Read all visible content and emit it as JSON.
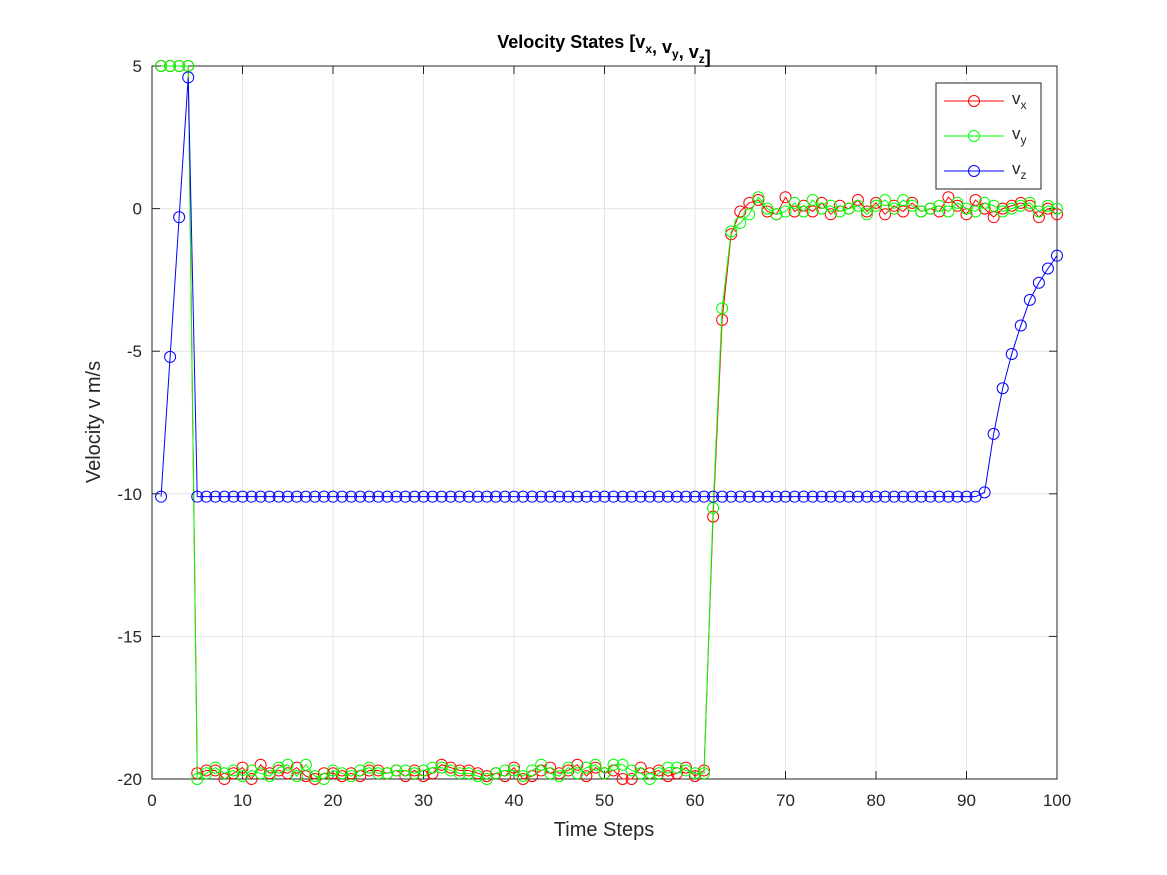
{
  "chart_data": {
    "type": "line",
    "title": "Velocity States [vx, vy, vz]",
    "x_label": "Time Steps",
    "y_label": "Velocity v m/s",
    "x": [
      1,
      2,
      3,
      4,
      5,
      6,
      7,
      8,
      9,
      10,
      11,
      12,
      13,
      14,
      15,
      16,
      17,
      18,
      19,
      20,
      21,
      22,
      23,
      24,
      25,
      26,
      27,
      28,
      29,
      30,
      31,
      32,
      33,
      34,
      35,
      36,
      37,
      38,
      39,
      40,
      41,
      42,
      43,
      44,
      45,
      46,
      47,
      48,
      49,
      50,
      51,
      52,
      53,
      54,
      55,
      56,
      57,
      58,
      59,
      60,
      61,
      62,
      63,
      64,
      65,
      66,
      67,
      68,
      69,
      70,
      71,
      72,
      73,
      74,
      75,
      76,
      77,
      78,
      79,
      80,
      81,
      82,
      83,
      84,
      85,
      86,
      87,
      88,
      89,
      90,
      91,
      92,
      93,
      94,
      95,
      96,
      97,
      98,
      99,
      100
    ],
    "series": [
      {
        "name": "vx",
        "color": "#ff0000",
        "values": [
          5,
          5,
          5,
          5,
          -19.8,
          -19.7,
          -19.7,
          -20,
          -19.8,
          -19.6,
          -20,
          -19.5,
          -19.8,
          -19.7,
          -19.8,
          -19.6,
          -19.9,
          -20,
          -19.8,
          -19.8,
          -19.9,
          -19.8,
          -19.9,
          -19.7,
          -19.7,
          -19.8,
          -19.7,
          -19.9,
          -19.7,
          -19.9,
          -19.8,
          -19.5,
          -19.6,
          -19.7,
          -19.7,
          -19.8,
          -19.9,
          -19.8,
          -19.9,
          -19.6,
          -20,
          -19.9,
          -19.7,
          -19.6,
          -19.8,
          -19.7,
          -19.5,
          -19.9,
          -19.6,
          -19.8,
          -19.7,
          -20,
          -20,
          -19.6,
          -19.8,
          -19.7,
          -19.9,
          -19.8,
          -19.6,
          -19.9,
          -19.7,
          -10.8,
          -3.9,
          -0.9,
          -0.1,
          0.2,
          0.3,
          -0.1,
          -0.2,
          0.4,
          -0.1,
          0.1,
          -0.1,
          0.2,
          -0.2,
          0.1,
          0,
          0.3,
          -0.1,
          0.2,
          -0.2,
          0.1,
          -0.1,
          0.2,
          -0.1,
          0,
          -0.1,
          0.4,
          0.1,
          -0.2,
          0.3,
          0,
          -0.3,
          0,
          0.1,
          0.2,
          0.1,
          -0.3,
          0,
          -0.2
        ]
      },
      {
        "name": "vy",
        "color": "#00ff00",
        "values": [
          5,
          5,
          5,
          5,
          -20,
          -19.8,
          -19.6,
          -19.8,
          -19.7,
          -19.9,
          -19.7,
          -19.8,
          -19.9,
          -19.6,
          -19.5,
          -19.9,
          -19.5,
          -19.9,
          -20,
          -19.7,
          -19.8,
          -19.9,
          -19.7,
          -19.6,
          -19.8,
          -19.8,
          -19.7,
          -19.7,
          -19.8,
          -19.7,
          -19.6,
          -19.6,
          -19.7,
          -19.8,
          -19.8,
          -19.9,
          -20,
          -19.8,
          -19.7,
          -19.7,
          -19.9,
          -19.7,
          -19.5,
          -19.8,
          -19.9,
          -19.6,
          -19.8,
          -19.6,
          -19.5,
          -19.8,
          -19.5,
          -19.5,
          -19.7,
          -19.8,
          -20,
          -19.8,
          -19.6,
          -19.6,
          -19.7,
          -19.8,
          -19.8,
          -10.5,
          -3.5,
          -0.8,
          -0.5,
          -0.2,
          0.4,
          0,
          -0.2,
          -0.1,
          0.2,
          -0.1,
          0.3,
          0,
          0.1,
          -0.1,
          0,
          0.1,
          -0.2,
          0.1,
          0.3,
          0,
          0.3,
          0.1,
          -0.1,
          0,
          0.1,
          -0.1,
          0.2,
          0,
          -0.1,
          0.2,
          0.1,
          -0.1,
          0,
          0.1,
          0.2,
          -0.1,
          0.1,
          0
        ]
      },
      {
        "name": "vz",
        "color": "#0000ff",
        "values": [
          -10.1,
          -5.2,
          -0.3,
          4.6,
          -10.1,
          -10.1,
          -10.1,
          -10.1,
          -10.1,
          -10.1,
          -10.1,
          -10.1,
          -10.1,
          -10.1,
          -10.1,
          -10.1,
          -10.1,
          -10.1,
          -10.1,
          -10.1,
          -10.1,
          -10.1,
          -10.1,
          -10.1,
          -10.1,
          -10.1,
          -10.1,
          -10.1,
          -10.1,
          -10.1,
          -10.1,
          -10.1,
          -10.1,
          -10.1,
          -10.1,
          -10.1,
          -10.1,
          -10.1,
          -10.1,
          -10.1,
          -10.1,
          -10.1,
          -10.1,
          -10.1,
          -10.1,
          -10.1,
          -10.1,
          -10.1,
          -10.1,
          -10.1,
          -10.1,
          -10.1,
          -10.1,
          -10.1,
          -10.1,
          -10.1,
          -10.1,
          -10.1,
          -10.1,
          -10.1,
          -10.1,
          -10.1,
          -10.1,
          -10.1,
          -10.1,
          -10.1,
          -10.1,
          -10.1,
          -10.1,
          -10.1,
          -10.1,
          -10.1,
          -10.1,
          -10.1,
          -10.1,
          -10.1,
          -10.1,
          -10.1,
          -10.1,
          -10.1,
          -10.1,
          -10.1,
          -10.1,
          -10.1,
          -10.1,
          -10.1,
          -10.1,
          -10.1,
          -10.1,
          -10.1,
          -10.1,
          -9.95,
          -7.9,
          -6.3,
          -5.1,
          -4.1,
          -3.2,
          -2.6,
          -2.1,
          -1.65
        ]
      }
    ],
    "xlim": [
      0,
      100
    ],
    "xticks": [
      0,
      10,
      20,
      30,
      40,
      50,
      60,
      70,
      80,
      90,
      100
    ],
    "ylim": [
      -20,
      5
    ],
    "yticks": [
      -20,
      -15,
      -10,
      -5,
      0,
      5
    ],
    "grid": true,
    "legend": "northeast",
    "marker": "circle"
  }
}
